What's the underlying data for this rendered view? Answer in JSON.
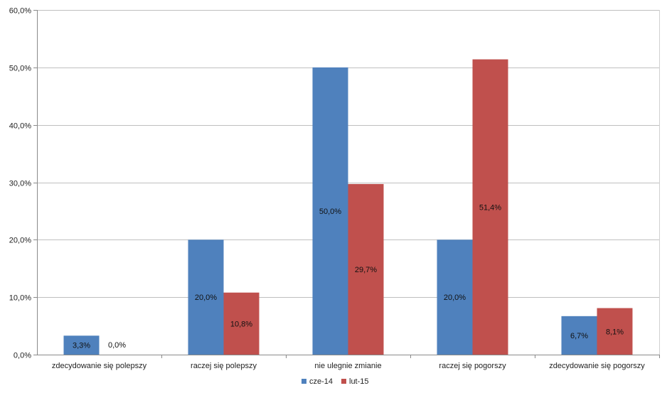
{
  "chart_data": {
    "type": "bar",
    "categories": [
      "zdecydowanie się polepszy",
      "raczej się polepszy",
      "nie ulegnie zmianie",
      "raczej się pogorszy",
      "zdecydowanie się pogorszy"
    ],
    "series": [
      {
        "name": "cze-14",
        "color": "#4F81BD",
        "values": [
          3.3,
          20.0,
          50.0,
          20.0,
          6.7
        ],
        "labels": [
          "3,3%",
          "20,0%",
          "50,0%",
          "20,0%",
          "6,7%"
        ]
      },
      {
        "name": "lut-15",
        "color": "#C0504D",
        "values": [
          0.0,
          10.8,
          29.7,
          51.4,
          8.1
        ],
        "labels": [
          "0,0%",
          "10,8%",
          "29,7%",
          "51,4%",
          "8,1%"
        ]
      }
    ],
    "ylim": [
      0,
      60
    ],
    "yticks": [
      0,
      10,
      20,
      30,
      40,
      50,
      60
    ],
    "ytick_labels": [
      "0,0%",
      "10,0%",
      "20,0%",
      "30,0%",
      "40,0%",
      "50,0%",
      "60,0%"
    ],
    "grid": true,
    "legend_position": "bottom",
    "gridline_color": "#BFBFBF"
  }
}
